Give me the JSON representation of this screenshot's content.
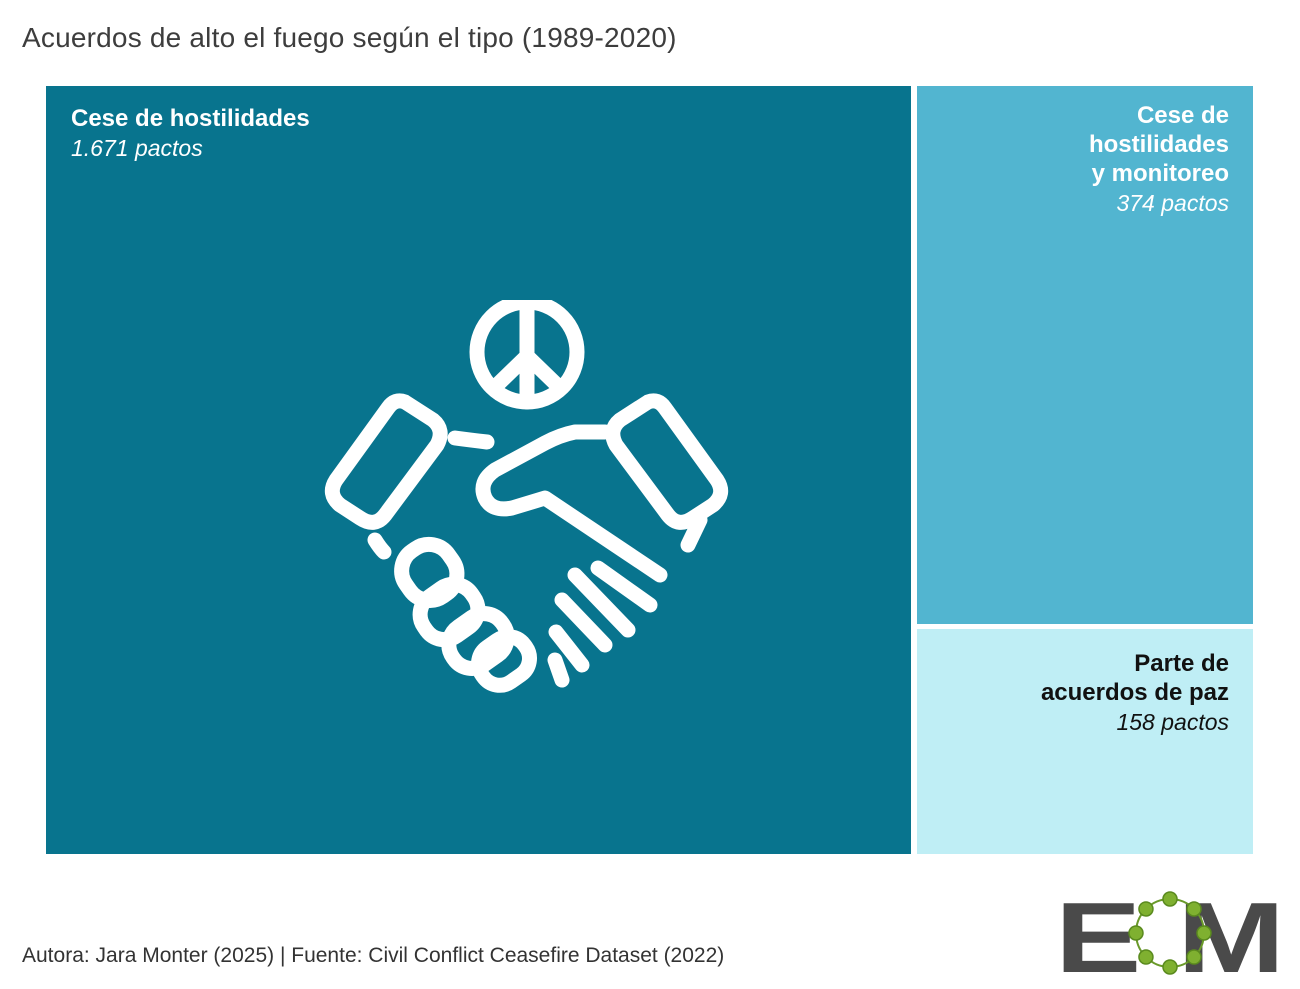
{
  "title": "Acuerdos de alto el fuego según el tipo (1989-2020)",
  "footer": "Autora: Jara Monter (2025) | Fuente: Civil Conflict Ceasefire Dataset (2022)",
  "logo_text": "EOM",
  "icon": "handshake-peace-icon",
  "colors": {
    "dark": "#08748e",
    "mid": "#52b5d0",
    "light": "#bfeef5"
  },
  "chart_data": {
    "type": "treemap",
    "unit": "pactos",
    "items": [
      {
        "label": "Cese de hostilidades",
        "value": 1671,
        "value_text": "1.671 pactos",
        "color": "#08748e"
      },
      {
        "label": "Cese de hostilidades y monitoreo",
        "label_lines": [
          "Cese de",
          "hostilidades",
          "y monitoreo"
        ],
        "value": 374,
        "value_text": "374 pactos",
        "color": "#52b5d0"
      },
      {
        "label": "Parte de acuerdos de paz",
        "label_lines": [
          "Parte de",
          "acuerdos de paz"
        ],
        "value": 158,
        "value_text": "158 pactos",
        "color": "#bfeef5"
      }
    ]
  }
}
